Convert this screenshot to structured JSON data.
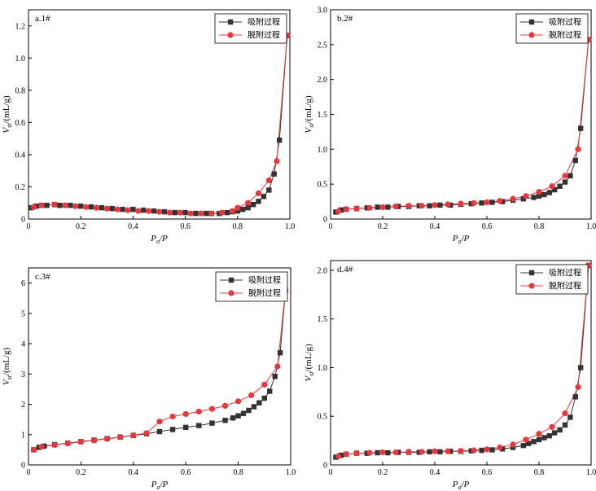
{
  "chart_data": [
    {
      "type": "line",
      "panel_label": "a.1#",
      "xlabel": {
        "main": "P",
        "sub": "o",
        "tail": "/P"
      },
      "ylabel": {
        "main": "V",
        "sub": "st",
        "tail": "/(mL/g)"
      },
      "xlim": [
        0,
        1.0
      ],
      "ylim": [
        0,
        1.3
      ],
      "xticks": [
        "0",
        "0.2",
        "0.4",
        "0.6",
        "0.8",
        "1.0"
      ],
      "xtick_values": [
        0,
        0.2,
        0.4,
        0.6,
        0.8,
        1.0
      ],
      "yticks": [
        "0",
        "0.2",
        "0.4",
        "0.6",
        "0.8",
        "1.0",
        "1.2"
      ],
      "ytick_values": [
        0,
        0.2,
        0.4,
        0.6,
        0.8,
        1.0,
        1.2
      ],
      "legend_position": "top-right",
      "series": [
        {
          "name": "吸附过程",
          "marker": "square",
          "color": "#333333",
          "x": [
            0.01,
            0.03,
            0.05,
            0.07,
            0.1,
            0.12,
            0.16,
            0.2,
            0.24,
            0.28,
            0.32,
            0.36,
            0.4,
            0.44,
            0.48,
            0.52,
            0.56,
            0.6,
            0.64,
            0.68,
            0.7,
            0.73,
            0.76,
            0.78,
            0.8,
            0.82,
            0.84,
            0.86,
            0.88,
            0.9,
            0.92,
            0.94,
            0.96,
            0.99
          ],
          "y": [
            0.07,
            0.08,
            0.085,
            0.085,
            0.09,
            0.085,
            0.085,
            0.08,
            0.075,
            0.07,
            0.065,
            0.06,
            0.06,
            0.055,
            0.05,
            0.045,
            0.04,
            0.04,
            0.035,
            0.035,
            0.035,
            0.035,
            0.04,
            0.045,
            0.05,
            0.06,
            0.07,
            0.09,
            0.11,
            0.14,
            0.18,
            0.28,
            0.49,
            1.14
          ]
        },
        {
          "name": "脱附过程",
          "marker": "circle",
          "color": "#e8383d",
          "x": [
            0.02,
            0.05,
            0.1,
            0.14,
            0.18,
            0.22,
            0.26,
            0.3,
            0.34,
            0.38,
            0.42,
            0.46,
            0.5,
            0.54,
            0.58,
            0.62,
            0.66,
            0.7,
            0.74,
            0.78,
            0.8,
            0.84,
            0.88,
            0.92,
            0.95,
            0.99
          ],
          "y": [
            0.075,
            0.085,
            0.09,
            0.085,
            0.08,
            0.075,
            0.07,
            0.065,
            0.06,
            0.055,
            0.05,
            0.05,
            0.045,
            0.04,
            0.04,
            0.035,
            0.035,
            0.035,
            0.04,
            0.05,
            0.07,
            0.1,
            0.16,
            0.24,
            0.36,
            1.14
          ]
        }
      ]
    },
    {
      "type": "line",
      "panel_label": "b.2#",
      "xlabel": {
        "main": "P",
        "sub": "o",
        "tail": "/P"
      },
      "ylabel": {
        "main": "V",
        "sub": "st",
        "tail": "/(mL/g)"
      },
      "xlim": [
        0,
        1.0
      ],
      "ylim": [
        0,
        3.0
      ],
      "xticks": [
        "0",
        "0.2",
        "0.4",
        "0.6",
        "0.8",
        "1.0"
      ],
      "xtick_values": [
        0,
        0.2,
        0.4,
        0.6,
        0.8,
        1.0
      ],
      "yticks": [
        "0",
        "0.5",
        "1.0",
        "1.5",
        "2.0",
        "2.5",
        "3.0"
      ],
      "ytick_values": [
        0,
        0.5,
        1.0,
        1.5,
        2.0,
        2.5,
        3.0
      ],
      "legend_position": "top-right",
      "series": [
        {
          "name": "吸附过程",
          "marker": "square",
          "color": "#333333",
          "x": [
            0.02,
            0.04,
            0.06,
            0.1,
            0.14,
            0.18,
            0.22,
            0.26,
            0.3,
            0.34,
            0.38,
            0.42,
            0.46,
            0.5,
            0.54,
            0.58,
            0.62,
            0.66,
            0.7,
            0.74,
            0.78,
            0.8,
            0.82,
            0.84,
            0.86,
            0.88,
            0.9,
            0.92,
            0.94,
            0.96,
            0.99
          ],
          "y": [
            0.1,
            0.13,
            0.14,
            0.15,
            0.16,
            0.17,
            0.17,
            0.18,
            0.18,
            0.19,
            0.19,
            0.2,
            0.2,
            0.21,
            0.22,
            0.23,
            0.24,
            0.25,
            0.27,
            0.29,
            0.31,
            0.33,
            0.35,
            0.38,
            0.42,
            0.47,
            0.53,
            0.62,
            0.84,
            1.3,
            2.57
          ]
        },
        {
          "name": "脱附过程",
          "marker": "circle",
          "color": "#e8383d",
          "x": [
            0.03,
            0.06,
            0.1,
            0.15,
            0.2,
            0.25,
            0.3,
            0.35,
            0.4,
            0.45,
            0.5,
            0.55,
            0.6,
            0.65,
            0.7,
            0.75,
            0.8,
            0.85,
            0.9,
            0.95,
            0.99
          ],
          "y": [
            0.11,
            0.14,
            0.15,
            0.16,
            0.17,
            0.18,
            0.19,
            0.19,
            0.2,
            0.21,
            0.22,
            0.23,
            0.24,
            0.26,
            0.29,
            0.33,
            0.39,
            0.47,
            0.62,
            1.0,
            2.57
          ]
        }
      ]
    },
    {
      "type": "line",
      "panel_label": "c.3#",
      "xlabel": {
        "main": "P",
        "sub": "o",
        "tail": "/P"
      },
      "ylabel": {
        "main": "V",
        "sub": "st",
        "tail": "/(mL/g)"
      },
      "xlim": [
        0,
        1.0
      ],
      "ylim": [
        0,
        6.5
      ],
      "xticks": [
        "0",
        "0.2",
        "0.4",
        "0.6",
        "0.8",
        "1.0"
      ],
      "xtick_values": [
        0,
        0.2,
        0.4,
        0.6,
        0.8,
        1.0
      ],
      "yticks": [
        "0",
        "1",
        "2",
        "3",
        "4",
        "5",
        "6"
      ],
      "ytick_values": [
        0,
        1,
        2,
        3,
        4,
        5,
        6
      ],
      "legend_position": "top-right",
      "series": [
        {
          "name": "吸附过程",
          "marker": "square",
          "color": "#333333",
          "x": [
            0.02,
            0.04,
            0.06,
            0.1,
            0.15,
            0.2,
            0.25,
            0.3,
            0.35,
            0.4,
            0.45,
            0.5,
            0.55,
            0.6,
            0.65,
            0.7,
            0.75,
            0.78,
            0.8,
            0.82,
            0.84,
            0.86,
            0.88,
            0.9,
            0.92,
            0.94,
            0.96,
            0.98
          ],
          "y": [
            0.5,
            0.58,
            0.62,
            0.67,
            0.72,
            0.77,
            0.82,
            0.87,
            0.92,
            0.97,
            1.03,
            1.1,
            1.17,
            1.24,
            1.3,
            1.38,
            1.47,
            1.55,
            1.62,
            1.7,
            1.8,
            1.92,
            2.05,
            2.2,
            2.43,
            2.92,
            3.7,
            5.75
          ]
        },
        {
          "name": "脱附过程",
          "marker": "circle",
          "color": "#e8383d",
          "x": [
            0.02,
            0.05,
            0.1,
            0.15,
            0.2,
            0.25,
            0.3,
            0.35,
            0.4,
            0.45,
            0.5,
            0.55,
            0.6,
            0.65,
            0.7,
            0.75,
            0.8,
            0.85,
            0.9,
            0.95,
            0.98
          ],
          "y": [
            0.5,
            0.6,
            0.66,
            0.71,
            0.76,
            0.81,
            0.86,
            0.92,
            0.98,
            1.05,
            1.43,
            1.6,
            1.68,
            1.76,
            1.85,
            1.95,
            2.1,
            2.3,
            2.65,
            3.25,
            5.75
          ]
        }
      ]
    },
    {
      "type": "line",
      "panel_label": "d.4#",
      "xlabel": {
        "main": "P",
        "sub": "o",
        "tail": "/P"
      },
      "ylabel": {
        "main": "V",
        "sub": "st",
        "tail": "/(mL/g)"
      },
      "xlim": [
        0,
        1.0
      ],
      "ylim": [
        0,
        2.1
      ],
      "xticks": [
        "0",
        "0.2",
        "0.4",
        "0.6",
        "0.8",
        "1.0"
      ],
      "xtick_values": [
        0,
        0.2,
        0.4,
        0.6,
        0.8,
        1.0
      ],
      "yticks": [
        "0",
        "0.5",
        "1.0",
        "1.5",
        "2.0"
      ],
      "ytick_values": [
        0,
        0.5,
        1.0,
        1.5,
        2.0
      ],
      "legend_position": "top-right",
      "series": [
        {
          "name": "吸附过程",
          "marker": "square",
          "color": "#333333",
          "x": [
            0.02,
            0.04,
            0.06,
            0.1,
            0.14,
            0.18,
            0.22,
            0.26,
            0.3,
            0.34,
            0.38,
            0.42,
            0.46,
            0.5,
            0.54,
            0.58,
            0.62,
            0.66,
            0.7,
            0.74,
            0.76,
            0.78,
            0.8,
            0.82,
            0.84,
            0.86,
            0.88,
            0.9,
            0.92,
            0.94,
            0.96,
            0.99
          ],
          "y": [
            0.08,
            0.1,
            0.11,
            0.12,
            0.12,
            0.125,
            0.125,
            0.13,
            0.13,
            0.13,
            0.135,
            0.135,
            0.14,
            0.14,
            0.145,
            0.15,
            0.155,
            0.165,
            0.18,
            0.2,
            0.22,
            0.24,
            0.26,
            0.28,
            0.3,
            0.33,
            0.36,
            0.41,
            0.49,
            0.7,
            1.0,
            2.05
          ]
        },
        {
          "name": "脱附过程",
          "marker": "circle",
          "color": "#e8383d",
          "x": [
            0.03,
            0.06,
            0.1,
            0.15,
            0.2,
            0.25,
            0.3,
            0.35,
            0.4,
            0.45,
            0.5,
            0.55,
            0.6,
            0.65,
            0.7,
            0.75,
            0.8,
            0.85,
            0.9,
            0.95,
            0.99
          ],
          "y": [
            0.09,
            0.11,
            0.12,
            0.125,
            0.13,
            0.13,
            0.135,
            0.135,
            0.14,
            0.14,
            0.145,
            0.15,
            0.16,
            0.18,
            0.21,
            0.26,
            0.32,
            0.39,
            0.53,
            0.8,
            2.05
          ]
        }
      ]
    }
  ]
}
